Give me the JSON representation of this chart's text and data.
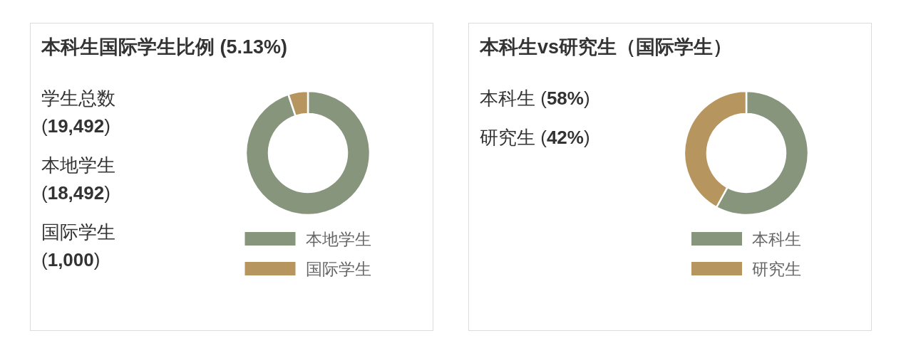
{
  "chart_data": [
    {
      "type": "donut",
      "title": "本科生国际学生比例 (5.13%)",
      "categories": [
        "本地学生",
        "国际学生"
      ],
      "values": [
        94.87,
        5.13
      ],
      "colors": [
        "#86957b",
        "#b7955e"
      ],
      "legend": "bottom",
      "annotations": [
        "学生总数 (19,492)",
        "本地学生 (18,492)",
        "国际学生 (1,000)"
      ]
    },
    {
      "type": "donut",
      "title": "本科生vs研究生（国际学生）",
      "categories": [
        "本科生",
        "研究生"
      ],
      "values": [
        58,
        42
      ],
      "colors": [
        "#86957b",
        "#b7955e"
      ],
      "legend": "bottom",
      "annotations": [
        "本科生 (58%)",
        "研究生 (42%)"
      ]
    }
  ]
}
